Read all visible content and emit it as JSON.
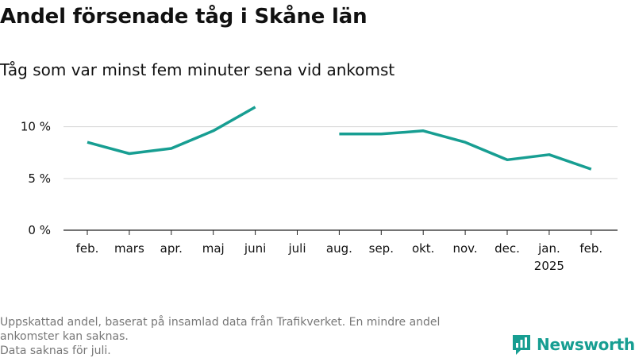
{
  "header": {
    "title": "Andel försenade tåg i Skåne län",
    "subtitle": "Tåg som var minst fem minuter sena vid ankomst"
  },
  "colors": {
    "line": "#179e92",
    "grid": "#d6d6d6",
    "text": "#111111",
    "footnote": "#777777"
  },
  "chart_data": {
    "type": "line",
    "title": "Andel försenade tåg i Skåne län",
    "subtitle": "Tåg som var minst fem minuter sena vid ankomst",
    "categories": [
      "feb.",
      "mars",
      "apr.",
      "maj",
      "juni",
      "juli",
      "aug.",
      "sep.",
      "okt.",
      "nov.",
      "dec.",
      "jan.",
      "feb."
    ],
    "category_sublabels": [
      "",
      "",
      "",
      "",
      "",
      "",
      "",
      "",
      "",
      "",
      "",
      "2025",
      ""
    ],
    "series": [
      {
        "values": [
          8.5,
          7.4,
          7.9,
          9.6,
          11.9,
          null,
          9.3,
          9.3,
          9.6,
          8.5,
          6.8,
          7.3,
          5.9
        ]
      }
    ],
    "yticks": [
      0,
      5,
      10
    ],
    "ytick_labels": [
      "0 %",
      "5 %",
      "10 %"
    ],
    "ylim": [
      0,
      13.5
    ],
    "grid": true,
    "legend": "none"
  },
  "footnote": {
    "line1": "Uppskattad andel, baserat på insamlad data från Trafikverket. En mindre andel ankomster kan saknas.",
    "line2": "Data saknas för juli."
  },
  "logo": {
    "name": "Newsworthy",
    "icon": "newsworthy-logo-icon"
  }
}
